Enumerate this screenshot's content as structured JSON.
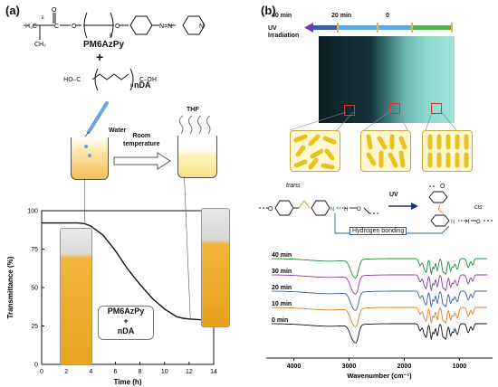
{
  "panel_a": {
    "label": "(a)",
    "polymer_name": "PM6AzPy",
    "plus": "+",
    "additive_name": "nDA",
    "additive_formula_left": "HO–C",
    "additive_formula_right": "C–OH",
    "n_sub": "n",
    "poly_sub_6": "6",
    "water_label": "Water",
    "thf_label": "THF",
    "arrow_label_line1": "Room",
    "arrow_label_line2": "temperature",
    "callout_line1": "PM6AzPy",
    "callout_line2": "+",
    "callout_line3": "nDA"
  },
  "panel_b": {
    "label": "(b)",
    "uv_label_line1": "UV",
    "uv_label_line2": "Irradiation",
    "time_labels": [
      "40 min",
      "20 min",
      "0"
    ],
    "scheme_trans": "trans",
    "scheme_cis": "cis",
    "scheme_uv": "UV",
    "hbond_label": "Hydrogen bonding"
  },
  "chart_data": [
    {
      "type": "line",
      "xlabel": "Time (h)",
      "ylabel": "Transmittance (%)",
      "xlim": [
        0,
        14
      ],
      "ylim": [
        0,
        100
      ],
      "x_ticks": [
        0,
        2,
        4,
        6,
        8,
        10,
        12,
        14
      ],
      "y_ticks": [
        0,
        25,
        50,
        75,
        100
      ],
      "series": [
        {
          "x": [
            0,
            1,
            2,
            3,
            3.5,
            4,
            5,
            6,
            7,
            8,
            9,
            10,
            11,
            11.5,
            12,
            13,
            14
          ],
          "values": [
            92,
            92,
            92,
            92,
            91.5,
            90,
            84,
            74,
            62,
            52,
            43,
            36,
            31,
            30,
            29.5,
            29,
            29
          ]
        }
      ]
    },
    {
      "type": "line",
      "xlabel": "Wavenumber (cm⁻¹)",
      "ylabel": "",
      "xlim": [
        4500,
        400
      ],
      "x_ticks": [
        4000,
        3000,
        2000,
        1000
      ],
      "series": [
        {
          "name": "40 min",
          "color": "#1a8a3a"
        },
        {
          "name": "30 min",
          "color": "#8a3aa0"
        },
        {
          "name": "20 min",
          "color": "#3f5aa8"
        },
        {
          "name": "10 min",
          "color": "#e07a20"
        },
        {
          "name": "0 min",
          "color": "#111111"
        }
      ]
    }
  ],
  "colors": {
    "uv_bar": "#6a3fb5",
    "segment_blue": "#5aa9e6",
    "segment_green": "#4caf50",
    "tick_orange": "#f2b233",
    "sample_dark": "#0f2d2e",
    "sample_light": "#8fd9cf",
    "rod": "#f5d23a",
    "callout_border": "#777777"
  }
}
